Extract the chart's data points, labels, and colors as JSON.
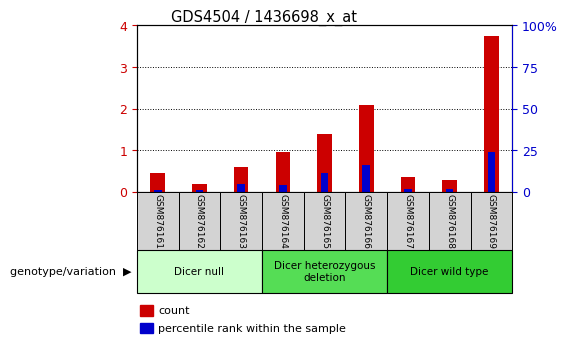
{
  "title": "GDS4504 / 1436698_x_at",
  "samples": [
    "GSM876161",
    "GSM876162",
    "GSM876163",
    "GSM876164",
    "GSM876165",
    "GSM876166",
    "GSM876167",
    "GSM876168",
    "GSM876169"
  ],
  "count_values": [
    0.45,
    0.18,
    0.6,
    0.95,
    1.38,
    2.08,
    0.35,
    0.28,
    3.75
  ],
  "percentile_values": [
    0.05,
    0.05,
    0.18,
    0.16,
    0.46,
    0.65,
    0.06,
    0.08,
    0.97
  ],
  "count_color": "#cc0000",
  "percentile_color": "#0000cc",
  "ylim_left": [
    0,
    4
  ],
  "ylim_right": [
    0,
    100
  ],
  "yticks_left": [
    0,
    1,
    2,
    3,
    4
  ],
  "yticks_right": [
    0,
    25,
    50,
    75,
    100
  ],
  "groups": [
    {
      "label": "Dicer null",
      "start": 0,
      "end": 3,
      "color": "#ccffcc"
    },
    {
      "label": "Dicer heterozygous\ndeletion",
      "start": 3,
      "end": 6,
      "color": "#55dd55"
    },
    {
      "label": "Dicer wild type",
      "start": 6,
      "end": 9,
      "color": "#33cc33"
    }
  ],
  "group_label_prefix": "genotype/variation",
  "legend_count": "count",
  "legend_percentile": "percentile rank within the sample",
  "tick_label_color": "#cc0000",
  "right_tick_color": "#0000cc",
  "bar_width": 0.35,
  "pct_bar_width": 0.18
}
